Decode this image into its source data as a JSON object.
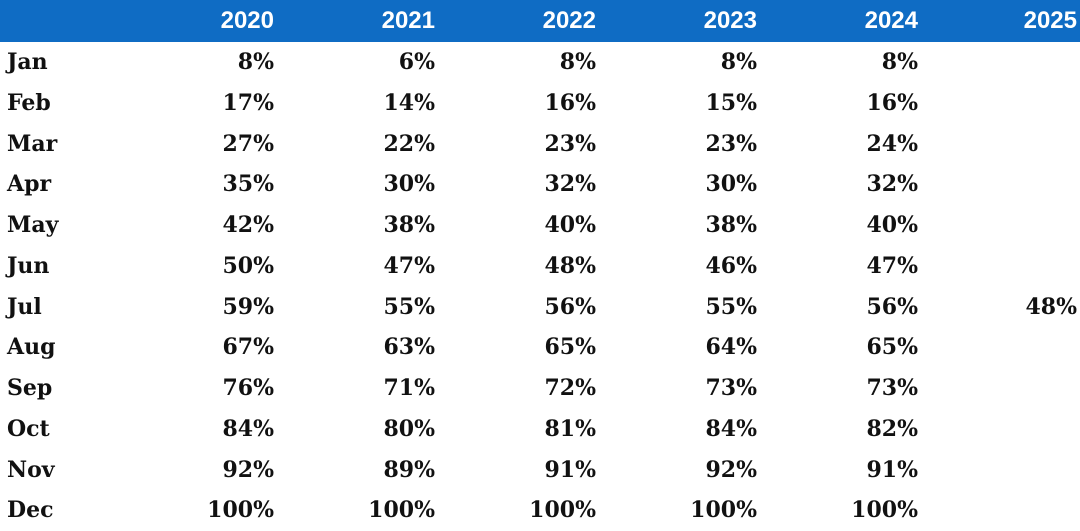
{
  "header_color": "#0f6cc4",
  "chart_data": {
    "type": "table",
    "columns": [
      "2020",
      "2021",
      "2022",
      "2023",
      "2024",
      "2025"
    ],
    "rows": [
      {
        "month": "Jan",
        "values": [
          "8%",
          "6%",
          "8%",
          "8%",
          "8%",
          ""
        ]
      },
      {
        "month": "Feb",
        "values": [
          "17%",
          "14%",
          "16%",
          "15%",
          "16%",
          ""
        ]
      },
      {
        "month": "Mar",
        "values": [
          "27%",
          "22%",
          "23%",
          "23%",
          "24%",
          ""
        ]
      },
      {
        "month": "Apr",
        "values": [
          "35%",
          "30%",
          "32%",
          "30%",
          "32%",
          ""
        ]
      },
      {
        "month": "May",
        "values": [
          "42%",
          "38%",
          "40%",
          "38%",
          "40%",
          ""
        ]
      },
      {
        "month": "Jun",
        "values": [
          "50%",
          "47%",
          "48%",
          "46%",
          "47%",
          ""
        ]
      },
      {
        "month": "Jul",
        "values": [
          "59%",
          "55%",
          "56%",
          "55%",
          "56%",
          "48%"
        ]
      },
      {
        "month": "Aug",
        "values": [
          "67%",
          "63%",
          "65%",
          "64%",
          "65%",
          ""
        ]
      },
      {
        "month": "Sep",
        "values": [
          "76%",
          "71%",
          "72%",
          "73%",
          "73%",
          ""
        ]
      },
      {
        "month": "Oct",
        "values": [
          "84%",
          "80%",
          "81%",
          "84%",
          "82%",
          ""
        ]
      },
      {
        "month": "Nov",
        "values": [
          "92%",
          "89%",
          "91%",
          "92%",
          "91%",
          ""
        ]
      },
      {
        "month": "Dec",
        "values": [
          "100%",
          "100%",
          "100%",
          "100%",
          "100%",
          ""
        ]
      }
    ]
  }
}
